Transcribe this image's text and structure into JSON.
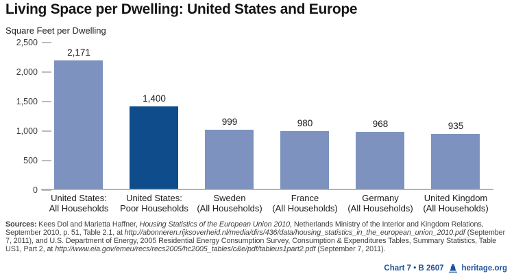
{
  "header": {
    "title": "Living Space per Dwelling: United States and Europe",
    "subtitle": "Square Feet per Dwelling"
  },
  "chart_data": {
    "type": "bar",
    "title": "Living Space per Dwelling: United States and Europe",
    "ylabel": "Square Feet per Dwelling",
    "xlabel": "",
    "categories": [
      "United States:\nAll Households",
      "United States:\nPoor Households",
      "Sweden\n(All Households)",
      "France\n(All Households)",
      "Germany\n(All Households)",
      "United Kingdom\n(All Households)"
    ],
    "values": [
      2171,
      1400,
      999,
      980,
      968,
      935
    ],
    "value_labels": [
      "2,171",
      "1,400",
      "999",
      "980",
      "968",
      "935"
    ],
    "bar_colors": [
      "#7E92BF",
      "#0E4C8C",
      "#7E92BF",
      "#7E92BF",
      "#7E92BF",
      "#7E92BF"
    ],
    "ylim": [
      0,
      2500
    ],
    "yticks": [
      0,
      500,
      1000,
      1500,
      2000,
      2500
    ],
    "ytick_labels": [
      "0",
      "500",
      "1,000",
      "1,500",
      "2,000",
      "2,500"
    ],
    "grid": false,
    "legend": "none"
  },
  "sources": {
    "label": "Sources:",
    "segments": [
      {
        "text": " Kees Dol and Marietta Haffner, ",
        "italic": false
      },
      {
        "text": "Housing Statistics of the European Union 2010,",
        "italic": true
      },
      {
        "text": " Netherlands Ministry of the Interior and Kingdom Relations, September 2010, p. 51, Table 2.1, at ",
        "italic": false
      },
      {
        "text": "http://abonneren.rijksoverheid.nl/media/dirs/436/data/housing_statistics_in_the_european_union_2010.pdf",
        "italic": true
      },
      {
        "text": " (September 7, 2011), and U.S. Department of Energy, 2005 Residential Energy Consumption Survey, Consumption & Expenditures Tables, Summary Statistics, Table US1, Part 2, at ",
        "italic": false
      },
      {
        "text": "http://www.eia.gov/emeu/recs/recs2005/hc2005_tables/c&e/pdf/tableus1part2.pdf",
        "italic": true
      },
      {
        "text": " (September 7, 2011).",
        "italic": false
      }
    ]
  },
  "footer": {
    "chart_ref": "Chart 7 • B 2607",
    "site": "heritage.org",
    "accent_color": "#1F5299"
  },
  "colors": {
    "bar_light": "#7E92BF",
    "bar_dark": "#0E4C8C",
    "axis_gray": "#B3B3B3",
    "text_dark": "#1A1A1A",
    "source_text": "#3F3F3F",
    "footer_blue": "#1F5299"
  }
}
